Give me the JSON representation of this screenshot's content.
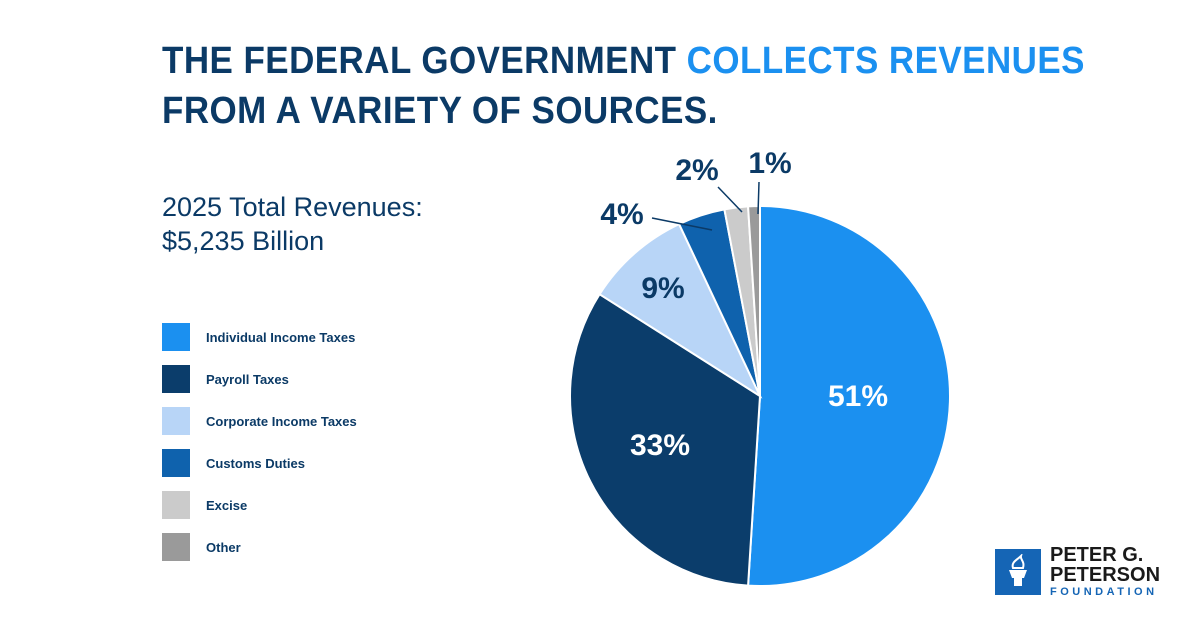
{
  "header": {
    "title_part1": "THE FEDERAL GOVERNMENT ",
    "title_highlight": "COLLECTS REVENUES",
    "title_part2": "FROM A VARIETY OF SOURCES."
  },
  "chart_data": {
    "type": "pie",
    "subtitle_line1": "2025 Total Revenues:",
    "subtitle_line2": "$5,235 Billion",
    "start": "12 o'clock, clockwise",
    "legend_position": "left",
    "slices": [
      {
        "name": "Individual Income Taxes",
        "value": 51,
        "label": "51%",
        "color": "#1b90f0"
      },
      {
        "name": "Payroll Taxes",
        "value": 33,
        "label": "33%",
        "color": "#0b3d6b"
      },
      {
        "name": "Corporate Income Taxes",
        "value": 9,
        "label": "9%",
        "color": "#b8d5f7"
      },
      {
        "name": "Customs Duties",
        "value": 4,
        "label": "4%",
        "color": "#0f62ad"
      },
      {
        "name": "Excise",
        "value": 2,
        "label": "2%",
        "color": "#cbcbcb"
      },
      {
        "name": "Other",
        "value": 1,
        "label": "1%",
        "color": "#9a9a9a"
      }
    ]
  },
  "logo": {
    "line1": "PETER G.",
    "line2": "PETERSON",
    "line3": "FOUNDATION",
    "icon": "torch-icon"
  }
}
